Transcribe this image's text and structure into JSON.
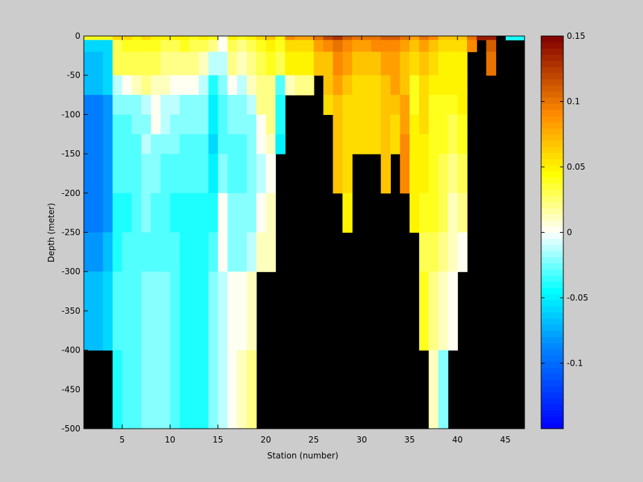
{
  "chart_data": {
    "type": "heatmap",
    "xlabel": "Station (number)",
    "ylabel": "Depth (meter)",
    "xlim": [
      1,
      47
    ],
    "ylim": [
      -500,
      0
    ],
    "xticks": [
      5,
      10,
      15,
      20,
      25,
      30,
      35,
      40,
      45
    ],
    "yticks": [
      0,
      -50,
      -100,
      -150,
      -200,
      -250,
      -300,
      -350,
      -400,
      -450,
      -500
    ],
    "colorbar": {
      "clim": [
        -0.15,
        0.15
      ],
      "ticks": [
        0.15,
        0.1,
        0.05,
        0,
        -0.05,
        -0.1
      ],
      "tick_labels": [
        "0.15",
        "0.1",
        "0.05",
        "0",
        "-0.05",
        "-0.1"
      ],
      "colormap": "jet-white-center",
      "steps": 64
    },
    "missing_color": "#000000",
    "depth_bin_edges": [
      0,
      -5,
      -20,
      -50,
      -75,
      -100,
      -125,
      -150,
      -200,
      -250,
      -300,
      -400,
      -500
    ],
    "station_edges": [
      1,
      47
    ],
    "grid": false,
    "column_profiles": [
      {
        "station": 1,
        "bottom": -300,
        "values": [
          0.04,
          -0.06,
          -0.07,
          -0.07,
          -0.09,
          -0.09,
          -0.09,
          -0.09,
          -0.09,
          -0.08,
          -0.07
        ]
      },
      {
        "station": 2,
        "bottom": -300,
        "values": [
          0.04,
          -0.06,
          -0.07,
          -0.07,
          -0.09,
          -0.09,
          -0.09,
          -0.09,
          -0.09,
          -0.08,
          -0.07
        ]
      },
      {
        "station": 3,
        "bottom": -300,
        "values": [
          0.04,
          -0.06,
          -0.06,
          -0.06,
          -0.08,
          -0.08,
          -0.08,
          -0.08,
          -0.08,
          -0.07,
          -0.06
        ]
      },
      {
        "station": 4,
        "bottom": -400,
        "values": [
          0.06,
          0.03,
          0.03,
          -0.01,
          -0.02,
          -0.03,
          -0.03,
          -0.03,
          -0.04,
          -0.04,
          -0.03,
          -0.04
        ]
      },
      {
        "station": 5,
        "bottom": -400,
        "values": [
          0.06,
          0.04,
          0.03,
          0.0,
          -0.02,
          -0.03,
          -0.03,
          -0.03,
          -0.04,
          -0.03,
          -0.03,
          -0.03
        ]
      },
      {
        "station": 6,
        "bottom": -400,
        "values": [
          0.05,
          0.04,
          0.03,
          0.01,
          -0.02,
          -0.02,
          -0.03,
          -0.03,
          -0.03,
          -0.03,
          -0.03,
          -0.03
        ]
      },
      {
        "station": 7,
        "bottom": -400,
        "values": [
          0.06,
          0.04,
          0.03,
          0.02,
          -0.01,
          -0.02,
          -0.01,
          -0.02,
          -0.02,
          -0.03,
          -0.02,
          -0.02
        ]
      },
      {
        "station": 8,
        "bottom": -400,
        "values": [
          0.05,
          0.04,
          0.03,
          0.01,
          0.0,
          0.0,
          -0.02,
          -0.02,
          -0.03,
          -0.03,
          -0.02,
          -0.02
        ]
      },
      {
        "station": 9,
        "bottom": -400,
        "values": [
          0.05,
          0.03,
          0.02,
          0.01,
          -0.01,
          -0.01,
          -0.02,
          -0.03,
          -0.03,
          -0.03,
          -0.02,
          -0.02
        ]
      },
      {
        "station": 10,
        "bottom": -400,
        "values": [
          0.05,
          0.03,
          0.02,
          0.0,
          -0.01,
          -0.02,
          -0.02,
          -0.03,
          -0.04,
          -0.03,
          -0.03,
          -0.03
        ]
      },
      {
        "station": 11,
        "bottom": -400,
        "values": [
          0.05,
          0.04,
          0.02,
          0.0,
          -0.02,
          -0.02,
          -0.03,
          -0.03,
          -0.04,
          -0.04,
          -0.04,
          -0.04
        ]
      },
      {
        "station": 12,
        "bottom": -500,
        "values": [
          0.04,
          0.03,
          0.02,
          0.0,
          -0.02,
          -0.02,
          -0.03,
          -0.03,
          -0.04,
          -0.04,
          -0.04,
          -0.04,
          -0.04
        ]
      },
      {
        "station": 13,
        "bottom": -500,
        "values": [
          0.05,
          0.03,
          0.01,
          -0.01,
          -0.02,
          -0.02,
          -0.03,
          -0.03,
          -0.04,
          -0.04,
          -0.04,
          -0.04,
          -0.04
        ]
      },
      {
        "station": 14,
        "bottom": -500,
        "values": [
          0.04,
          0.02,
          -0.01,
          -0.04,
          -0.05,
          -0.05,
          -0.06,
          -0.05,
          -0.04,
          -0.03,
          -0.02,
          -0.02,
          -0.02
        ]
      },
      {
        "station": 15,
        "bottom": -500,
        "values": [
          0.0,
          0.0,
          -0.01,
          -0.02,
          -0.03,
          -0.03,
          -0.03,
          -0.02,
          0.0,
          0.0,
          -0.01,
          -0.01,
          -0.01
        ]
      },
      {
        "station": 16,
        "bottom": -500,
        "values": [
          0.05,
          0.03,
          0.02,
          0.0,
          -0.02,
          -0.02,
          -0.03,
          -0.03,
          -0.02,
          -0.02,
          0.0,
          0.0,
          0.01
        ]
      },
      {
        "station": 17,
        "bottom": -500,
        "values": [
          0.04,
          0.02,
          0.01,
          -0.01,
          -0.02,
          -0.02,
          -0.03,
          -0.03,
          -0.02,
          -0.02,
          0.0,
          0.01,
          0.01
        ]
      },
      {
        "station": 18,
        "bottom": -400,
        "values": [
          0.05,
          0.03,
          0.02,
          0.01,
          -0.01,
          -0.02,
          -0.02,
          -0.02,
          -0.02,
          -0.01,
          0.01,
          0.02
        ]
      },
      {
        "station": 19,
        "bottom": -250,
        "values": [
          0.06,
          0.04,
          0.03,
          0.02,
          0.02,
          0.0,
          0.0,
          -0.01,
          0.0,
          0.01
        ]
      },
      {
        "station": 20,
        "bottom": -250,
        "values": [
          0.07,
          0.05,
          0.04,
          0.02,
          0.02,
          0.02,
          0.01,
          0.0,
          0.01,
          0.01
        ]
      },
      {
        "station": 21,
        "bottom": -150,
        "values": [
          0.05,
          0.04,
          0.03,
          -0.03,
          -0.04,
          -0.04,
          -0.05
        ]
      },
      {
        "station": 22,
        "bottom": -75,
        "values": [
          0.09,
          0.06,
          0.05,
          0.01
        ]
      },
      {
        "station": 23,
        "bottom": -75,
        "values": [
          0.08,
          0.06,
          0.05,
          0.02
        ]
      },
      {
        "station": 24,
        "bottom": -75,
        "values": [
          0.08,
          0.06,
          0.05,
          0.02
        ]
      },
      {
        "station": 25,
        "bottom": -50,
        "values": [
          0.1,
          0.08,
          0.07
        ]
      },
      {
        "station": 26,
        "bottom": -100,
        "values": [
          0.12,
          0.09,
          0.07,
          0.07,
          0.06
        ]
      },
      {
        "station": 27,
        "bottom": -200,
        "values": [
          0.13,
          0.1,
          0.09,
          0.08,
          0.07,
          0.07,
          0.07,
          0.07
        ]
      },
      {
        "station": 28,
        "bottom": -250,
        "values": [
          0.11,
          0.09,
          0.08,
          0.07,
          0.06,
          0.06,
          0.06,
          0.06,
          0.05
        ]
      },
      {
        "station": 29,
        "bottom": -150,
        "values": [
          0.1,
          0.08,
          0.07,
          0.06,
          0.06,
          0.06,
          0.06
        ]
      },
      {
        "station": 30,
        "bottom": -150,
        "values": [
          0.1,
          0.08,
          0.07,
          0.06,
          0.06,
          0.06,
          0.06
        ]
      },
      {
        "station": 31,
        "bottom": -150,
        "values": [
          0.1,
          0.09,
          0.07,
          0.06,
          0.06,
          0.06,
          0.06
        ]
      },
      {
        "station": 32,
        "bottom": -200,
        "values": [
          0.11,
          0.09,
          0.08,
          0.07,
          0.07,
          0.07,
          0.07,
          0.07
        ]
      },
      {
        "station": 33,
        "bottom": -150,
        "values": [
          0.11,
          0.09,
          0.08,
          0.08,
          0.07,
          0.06,
          0.06
        ]
      },
      {
        "station": 34,
        "bottom": -200,
        "values": [
          0.1,
          0.08,
          0.07,
          0.07,
          0.08,
          0.08,
          0.09,
          0.09
        ]
      },
      {
        "station": 35,
        "bottom": -250,
        "values": [
          0.08,
          0.07,
          0.06,
          0.04,
          0.04,
          0.05,
          0.05,
          0.05,
          0.05
        ]
      },
      {
        "station": 36,
        "bottom": -300,
        "values": [
          0.1,
          0.08,
          0.07,
          0.06,
          0.06,
          0.06,
          0.05,
          0.05,
          0.04,
          0.03,
          0.04
        ]
      },
      {
        "station": 37,
        "bottom": -400,
        "values": [
          0.09,
          0.07,
          0.06,
          0.05,
          0.04,
          0.04,
          0.04,
          0.04,
          0.04,
          0.03,
          0.02,
          0.01
        ]
      },
      {
        "station": 38,
        "bottom": -400,
        "values": [
          0.07,
          0.06,
          0.05,
          0.05,
          0.04,
          0.04,
          0.04,
          0.03,
          0.03,
          0.02,
          0.01,
          -0.02
        ]
      },
      {
        "station": 39,
        "bottom": -300,
        "values": [
          0.07,
          0.06,
          0.05,
          0.05,
          0.04,
          0.03,
          0.03,
          0.02,
          0.01,
          0.01,
          0.0
        ]
      },
      {
        "station": 40,
        "bottom": -250,
        "values": [
          0.07,
          0.06,
          0.05,
          0.05,
          0.05,
          0.04,
          0.04,
          0.03,
          0.02,
          0.0
        ]
      },
      {
        "station": 41,
        "bottom": -20,
        "values": [
          0.1,
          0.09
        ]
      },
      {
        "station": 42,
        "bottom": -5,
        "values": [
          0.14
        ]
      },
      {
        "station": 43,
        "bottom": -50,
        "values": [
          0.14,
          0.11,
          0.1
        ]
      },
      {
        "station": 44,
        "bottom": 0,
        "values": []
      },
      {
        "station": 45,
        "bottom": -5,
        "values": [
          -0.04
        ]
      },
      {
        "station": 46,
        "bottom": -5,
        "values": [
          -0.04
        ]
      }
    ]
  }
}
